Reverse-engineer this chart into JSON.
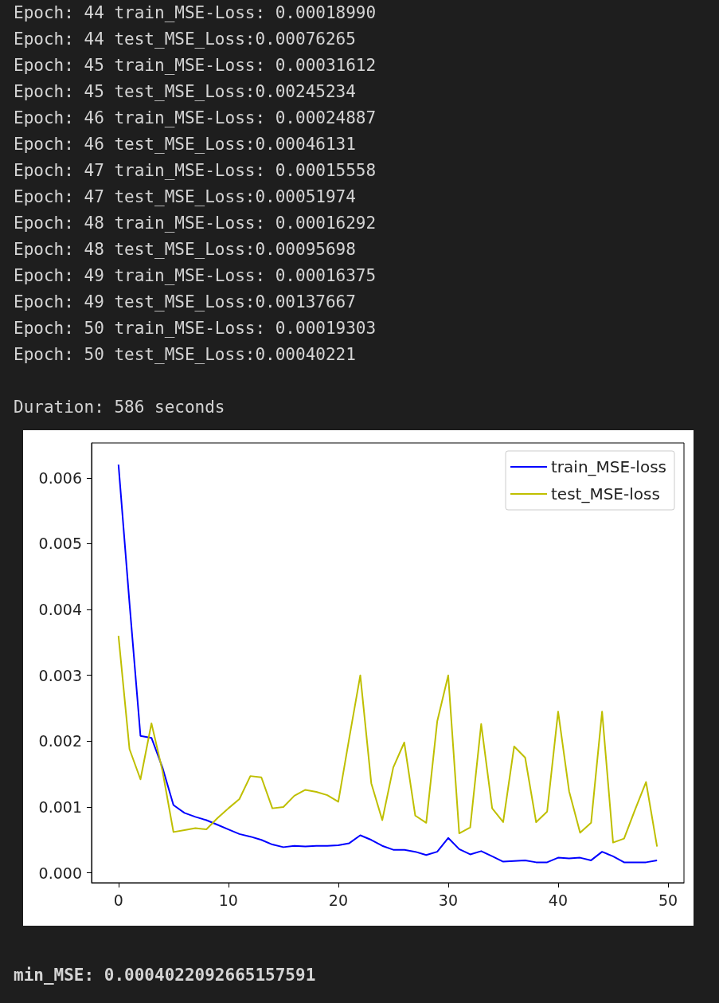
{
  "chart_data": {
    "type": "line",
    "annotations": [
      "Epoch: 44 train_MSE-Loss: 0.00018990",
      "Epoch: 44 test_MSE_Loss:0.00076265",
      "Epoch: 45 train_MSE-Loss: 0.00031612",
      "Epoch: 45 test_MSE_Loss:0.00245234",
      "Epoch: 46 train_MSE-Loss: 0.00024887",
      "Epoch: 46 test_MSE_Loss:0.00046131",
      "Epoch: 47 train_MSE-Loss: 0.00015558",
      "Epoch: 47 test_MSE_Loss:0.00051974",
      "Epoch: 48 train_MSE-Loss: 0.00016292",
      "Epoch: 48 test_MSE_Loss:0.00095698",
      "Epoch: 49 train_MSE-Loss: 0.00016375",
      "Epoch: 49 test_MSE_Loss:0.00137667",
      "Epoch: 50 train_MSE-Loss: 0.00019303",
      "Epoch: 50 test_MSE_Loss:0.00040221",
      "Duration: 586 seconds",
      "min_MSE: 0.0004022092665157591"
    ],
    "x": [
      0,
      1,
      2,
      3,
      4,
      5,
      6,
      7,
      8,
      9,
      10,
      11,
      12,
      13,
      14,
      15,
      16,
      17,
      18,
      19,
      20,
      21,
      22,
      23,
      24,
      25,
      26,
      27,
      28,
      29,
      30,
      31,
      32,
      33,
      34,
      35,
      36,
      37,
      38,
      39,
      40,
      41,
      42,
      43,
      44,
      45,
      46,
      47,
      48,
      49
    ],
    "series": [
      {
        "name": "train_MSE-loss",
        "color": "#0000ff",
        "values": [
          0.0062,
          0.0041,
          0.00208,
          0.00205,
          0.0016,
          0.00103,
          0.00091,
          0.00085,
          0.0008,
          0.00073,
          0.00066,
          0.00059,
          0.00055,
          0.0005,
          0.00043,
          0.00039,
          0.00041,
          0.0004,
          0.00041,
          0.00041,
          0.00042,
          0.00045,
          0.00057,
          0.0005,
          0.00041,
          0.00035,
          0.00035,
          0.00032,
          0.00027,
          0.00032,
          0.00053,
          0.00036,
          0.00028,
          0.00033,
          0.00025,
          0.00017,
          0.00018,
          0.00019,
          0.00016,
          0.00016,
          0.00023,
          0.00022,
          0.00023,
          0.00019,
          0.00032,
          0.00025,
          0.00016,
          0.00016,
          0.00016,
          0.00019
        ]
      },
      {
        "name": "test_MSE-loss",
        "color": "#bfbf00",
        "values": [
          0.0036,
          0.00188,
          0.00142,
          0.00227,
          0.00155,
          0.00062,
          0.00065,
          0.00068,
          0.00066,
          0.00083,
          0.00098,
          0.00112,
          0.00147,
          0.00145,
          0.00098,
          0.001,
          0.00117,
          0.00126,
          0.00123,
          0.00118,
          0.00108,
          0.00205,
          0.003,
          0.00136,
          0.0008,
          0.0016,
          0.00198,
          0.00087,
          0.00076,
          0.0023,
          0.003,
          0.0006,
          0.00069,
          0.00226,
          0.00098,
          0.00077,
          0.00192,
          0.00175,
          0.00077,
          0.00093,
          0.00245,
          0.00124,
          0.00061,
          0.00076,
          0.00245,
          0.00046,
          0.00052,
          0.00096,
          0.00138,
          0.0004
        ]
      }
    ],
    "xlim": [
      -2.45,
      51.45
    ],
    "xticks": [
      0,
      10,
      20,
      30,
      40,
      50
    ],
    "ylim": [
      -0.00015,
      0.00653
    ],
    "yticks": [
      {
        "value": 0,
        "label": "0.000"
      },
      {
        "value": 0.001,
        "label": "0.001"
      },
      {
        "value": 0.002,
        "label": "0.002"
      },
      {
        "value": 0.003,
        "label": "0.003"
      },
      {
        "value": 0.004,
        "label": "0.004"
      },
      {
        "value": 0.005,
        "label": "0.005"
      },
      {
        "value": 0.006,
        "label": "0.006"
      }
    ],
    "grid": false,
    "legend": "top right",
    "marker": "none",
    "line_style": "solid"
  }
}
